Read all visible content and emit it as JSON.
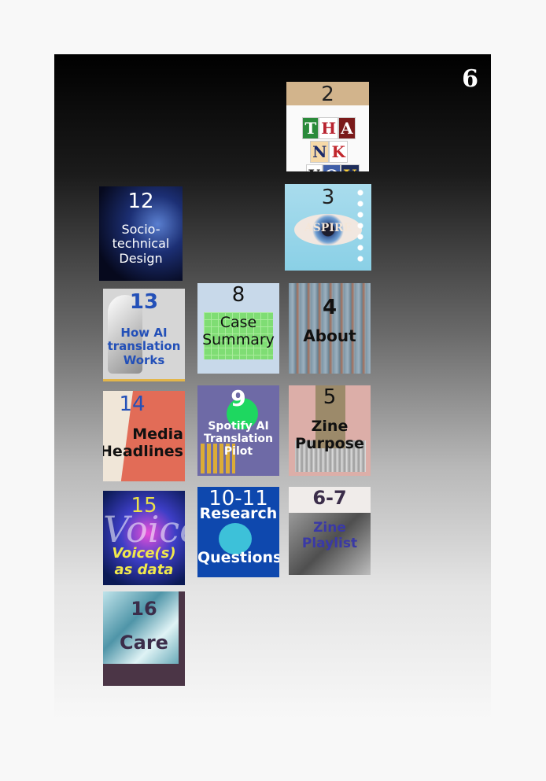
{
  "page_number": "6",
  "tiles": {
    "thank_you": {
      "number": "2",
      "letters": [
        "T",
        "H",
        "A",
        "N",
        "K",
        "Y",
        "O",
        "U",
        "!"
      ]
    },
    "aspire": {
      "number": "3",
      "label": "ASPIRE"
    },
    "socio": {
      "number": "12",
      "label": "Socio-technical Design"
    },
    "case": {
      "number": "8",
      "label": "Case Summary"
    },
    "about": {
      "number": "4",
      "label": "About"
    },
    "how_ai": {
      "number": "13",
      "label": "How AI translation Works"
    },
    "spotify": {
      "number": "9",
      "label": "Spotify AI Translation Pilot"
    },
    "purpose": {
      "number": "5",
      "label": "Zine Purpose"
    },
    "media": {
      "number": "14",
      "label": "Media Headlines"
    },
    "voice": {
      "number": "15",
      "big_word": "Voice",
      "label": "Voice(s) as data"
    },
    "research": {
      "number": "10-11",
      "label_top": "Research",
      "label_bottom": "Questions"
    },
    "playlist": {
      "number": "6-7",
      "label": "Zine Playlist"
    },
    "care": {
      "number": "16",
      "label": "Care"
    }
  },
  "colors": {
    "accent_blue": "#2350b8",
    "spotify_green": "#1ed760",
    "voice_yellow": "#f0e84c"
  }
}
